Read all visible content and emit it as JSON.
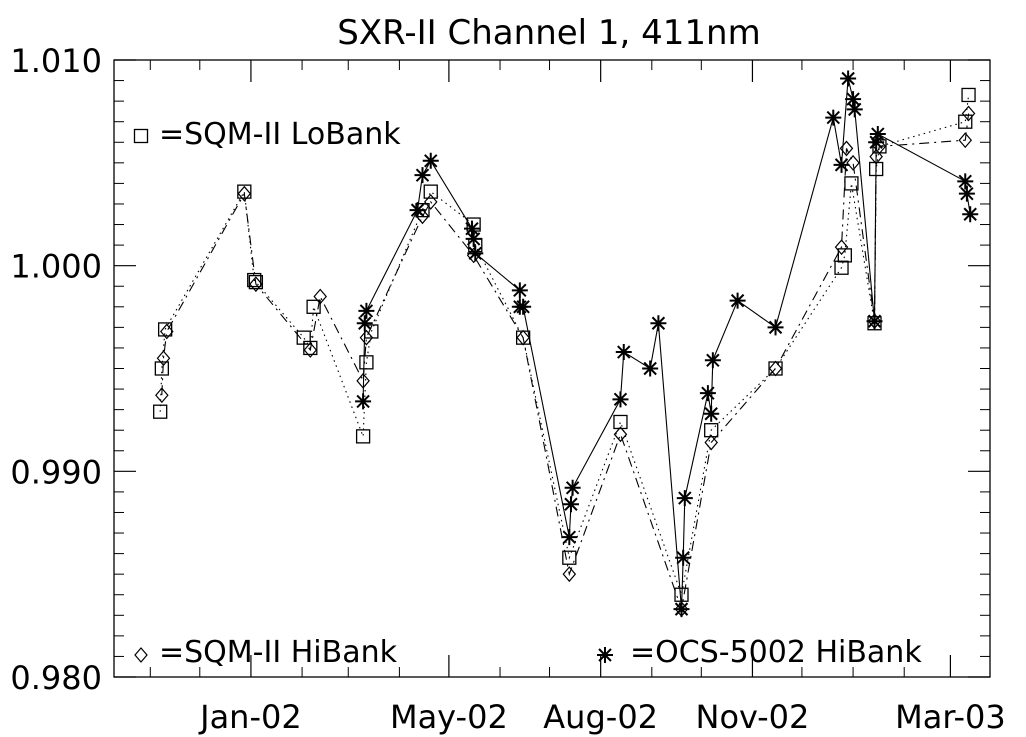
{
  "chart_data": {
    "type": "line",
    "title": "SXR-II Channel 1, 411nm",
    "xlabel": "",
    "ylabel": "",
    "x_tick_labels": [
      "Jan-02",
      "May-02",
      "Aug-02",
      "Nov-02",
      "Mar-03"
    ],
    "x_tick_dates": [
      "2002-01-01",
      "2002-05-01",
      "2002-08-01",
      "2002-11-01",
      "2003-03-01"
    ],
    "xlim": [
      "2001-10-10",
      "2003-03-25"
    ],
    "y_tick_labels": [
      "1.010",
      "1.000",
      "0.990",
      "0.980"
    ],
    "y_ticks": [
      1.01,
      1.0,
      0.99,
      0.98
    ],
    "ylim": [
      0.98,
      1.01
    ],
    "grid": false,
    "legend": [
      {
        "label": "=SQM-II LoBank",
        "marker": "square",
        "position": "top-left"
      },
      {
        "label": "=SQM-II HiBank",
        "marker": "diamond",
        "position": "bottom-left"
      },
      {
        "label": "=OCS-5002 HiBank",
        "marker": "asterisk",
        "position": "bottom-right"
      }
    ],
    "series": [
      {
        "name": "=SQM-II LoBank",
        "marker": "square",
        "line": "dotted",
        "points": [
          [
            "2001-11-07",
            0.9929
          ],
          [
            "2001-11-08",
            0.995
          ],
          [
            "2001-11-10",
            0.9969
          ],
          [
            "2001-12-28",
            1.0036
          ],
          [
            "2002-01-03",
            0.9993
          ],
          [
            "2002-01-04",
            0.9992
          ],
          [
            "2002-02-02",
            0.9965
          ],
          [
            "2002-02-06",
            0.996
          ],
          [
            "2002-02-08",
            0.998
          ],
          [
            "2002-03-10",
            0.9917
          ],
          [
            "2002-03-12",
            0.9953
          ],
          [
            "2002-03-15",
            0.9968
          ],
          [
            "2002-04-15",
            1.0027
          ],
          [
            "2002-04-20",
            1.0036
          ],
          [
            "2002-05-16",
            1.002
          ],
          [
            "2002-05-17",
            1.001
          ],
          [
            "2002-06-15",
            0.9965
          ],
          [
            "2002-07-13",
            0.9858
          ],
          [
            "2002-08-13",
            0.9924
          ],
          [
            "2002-09-19",
            0.984
          ],
          [
            "2002-10-07",
            0.992
          ],
          [
            "2002-11-15",
            0.995
          ],
          [
            "2002-12-25",
            0.9999
          ],
          [
            "2002-12-27",
            1.0005
          ],
          [
            "2002-12-31",
            1.004
          ],
          [
            "2003-01-14",
            0.9972
          ],
          [
            "2003-01-15",
            1.0047
          ],
          [
            "2003-01-17",
            1.0058
          ],
          [
            "2003-03-10",
            1.007
          ],
          [
            "2003-03-12",
            1.0083
          ]
        ]
      },
      {
        "name": "=SQM-II HiBank",
        "marker": "diamond",
        "line": "dash-dot",
        "points": [
          [
            "2001-11-08",
            0.9937
          ],
          [
            "2001-11-09",
            0.9955
          ],
          [
            "2001-11-11",
            0.9968
          ],
          [
            "2001-12-28",
            1.0035
          ],
          [
            "2002-01-04",
            0.9991
          ],
          [
            "2002-02-06",
            0.9959
          ],
          [
            "2002-02-12",
            0.9985
          ],
          [
            "2002-03-10",
            0.9944
          ],
          [
            "2002-03-12",
            0.9965
          ],
          [
            "2002-04-15",
            1.0024
          ],
          [
            "2002-04-20",
            1.0031
          ],
          [
            "2002-05-16",
            1.0005
          ],
          [
            "2002-06-15",
            0.9965
          ],
          [
            "2002-07-13",
            0.985
          ],
          [
            "2002-08-13",
            0.9918
          ],
          [
            "2002-09-19",
            0.9833
          ],
          [
            "2002-10-07",
            0.9914
          ],
          [
            "2002-11-15",
            0.995
          ],
          [
            "2002-12-25",
            1.0009
          ],
          [
            "2002-12-28",
            1.0057
          ],
          [
            "2003-01-01",
            1.005
          ],
          [
            "2003-01-14",
            0.9973
          ],
          [
            "2003-01-15",
            1.0053
          ],
          [
            "2003-01-17",
            1.0058
          ],
          [
            "2003-03-10",
            1.0061
          ],
          [
            "2003-03-12",
            1.0074
          ]
        ]
      },
      {
        "name": "=OCS-5002 HiBank",
        "marker": "asterisk",
        "line": "solid",
        "points": [
          [
            "2002-03-10",
            0.9934
          ],
          [
            "2002-03-11",
            0.9972
          ],
          [
            "2002-03-12",
            0.9978
          ],
          [
            "2002-04-12",
            1.0027
          ],
          [
            "2002-04-15",
            1.0044
          ],
          [
            "2002-04-20",
            1.0051
          ],
          [
            "2002-05-15",
            1.0018
          ],
          [
            "2002-05-16",
            1.0013
          ],
          [
            "2002-05-17",
            1.0006
          ],
          [
            "2002-06-13",
            0.9988
          ],
          [
            "2002-06-13",
            0.998
          ],
          [
            "2002-06-15",
            0.998
          ],
          [
            "2002-07-13",
            0.9868
          ],
          [
            "2002-07-14",
            0.9884
          ],
          [
            "2002-07-15",
            0.9892
          ],
          [
            "2002-08-13",
            0.9935
          ],
          [
            "2002-08-15",
            0.9958
          ],
          [
            "2002-08-31",
            0.995
          ],
          [
            "2002-09-05",
            0.9972
          ],
          [
            "2002-09-19",
            0.9833
          ],
          [
            "2002-09-20",
            0.9858
          ],
          [
            "2002-09-21",
            0.9887
          ],
          [
            "2002-10-05",
            0.9938
          ],
          [
            "2002-10-07",
            0.9928
          ],
          [
            "2002-10-08",
            0.9954
          ],
          [
            "2002-10-23",
            0.9983
          ],
          [
            "2002-11-15",
            0.997
          ],
          [
            "2002-12-20",
            1.0072
          ],
          [
            "2002-12-25",
            1.0049
          ],
          [
            "2002-12-29",
            1.0091
          ],
          [
            "2003-01-01",
            1.0081
          ],
          [
            "2003-01-02",
            1.0076
          ],
          [
            "2003-01-14",
            0.9973
          ],
          [
            "2003-01-15",
            1.006
          ],
          [
            "2003-01-16",
            1.0064
          ],
          [
            "2003-03-10",
            1.0041
          ],
          [
            "2003-03-11",
            1.0035
          ],
          [
            "2003-03-13",
            1.0025
          ]
        ]
      }
    ]
  }
}
